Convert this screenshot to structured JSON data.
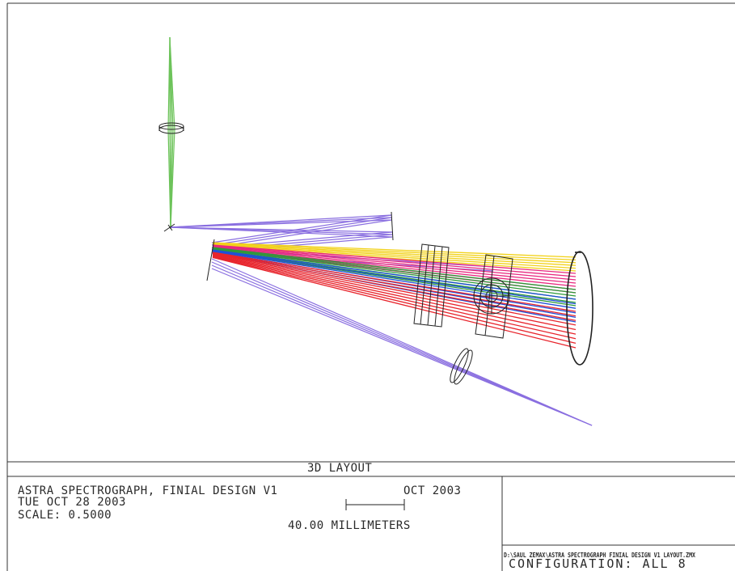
{
  "layout_title": "3D LAYOUT",
  "title_block": {
    "line1": "ASTRA SPECTROGRAPH, FINIAL DESIGN V1",
    "line2": "TUE OCT 28 2003",
    "line3": "SCALE:   0.5000"
  },
  "scale_bar": {
    "date": "OCT 2003",
    "units": "40.00 MILLIMETERS"
  },
  "file_path": "D:\\SAUL ZEMAX\\ASTRA SPECTROGRAPH FINIAL DESIGN V1 LAYOUT.ZMX",
  "configuration": "CONFIGURATION:  ALL  8",
  "colors": {
    "collimator_beam": "#6dc35a",
    "reflected_beam": "#8a6fe0",
    "yellow_band": "#f2d21a",
    "magenta_band": "#e8287f",
    "green_band": "#2e9a3a",
    "blue_band": "#2050d8",
    "red_band": "#e8242c",
    "optics": "#222222"
  }
}
